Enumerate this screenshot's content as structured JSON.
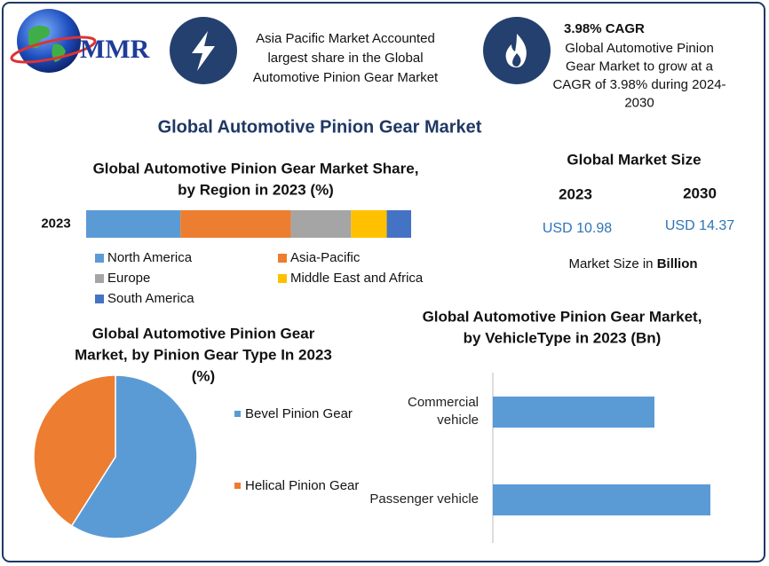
{
  "header": {
    "logo": "MMR",
    "fact": [
      "Asia Pacific Market Accounted",
      "largest share in the Global",
      "Automotive Pinion Gear Market"
    ],
    "cagr_title": "3.98% CAGR",
    "cagr_text": [
      "Global Automotive Pinion",
      "Gear Market to grow at a",
      "CAGR of 3.98% during 2024-",
      "2030"
    ]
  },
  "title": "Global Automotive Pinion Gear Market",
  "market_size": {
    "title": "Global Market Size",
    "columns": [
      {
        "year": "2023",
        "value": "USD 10.98"
      },
      {
        "year": "2030",
        "value": "USD 14.37"
      }
    ],
    "note": "Market Size in",
    "unit": "Billion"
  },
  "chart_data": [
    {
      "type": "stacked_bar",
      "title": [
        "Global Automotive Pinion Gear Market Share,",
        "by Region in 2023 (%)"
      ],
      "categories": [
        "2023"
      ],
      "series": [
        {
          "name": "North America",
          "color": "#5b9bd5",
          "values": [
            29
          ]
        },
        {
          "name": "Asia-Pacific",
          "color": "#ed7d31",
          "values": [
            34
          ]
        },
        {
          "name": "Europe",
          "color": "#a5a5a5",
          "values": [
            18.5
          ]
        },
        {
          "name": "Middle East and Africa",
          "color": "#ffc000",
          "values": [
            11
          ]
        },
        {
          "name": "South America",
          "color": "#4472c4",
          "values": [
            7.5
          ]
        }
      ]
    },
    {
      "type": "pie",
      "title": [
        "Global Automotive Pinion Gear",
        "Market, by Pinion Gear Type In 2023",
        "(%)"
      ],
      "categories": [
        "Bevel Pinion Gear",
        "Helical Pinion Gear"
      ],
      "values": [
        59,
        41
      ],
      "colors": [
        "#5b9bd5",
        "#ed7d31"
      ]
    },
    {
      "type": "hbar",
      "title": [
        "Global Automotive Pinion Gear Market,",
        "by VehicleType in 2023 (Bn)"
      ],
      "categories": [
        "Commercial\nvehicle",
        "Passenger vehicle"
      ],
      "values": [
        4.68,
        6.3
      ],
      "color": "#5b9bd5"
    }
  ]
}
